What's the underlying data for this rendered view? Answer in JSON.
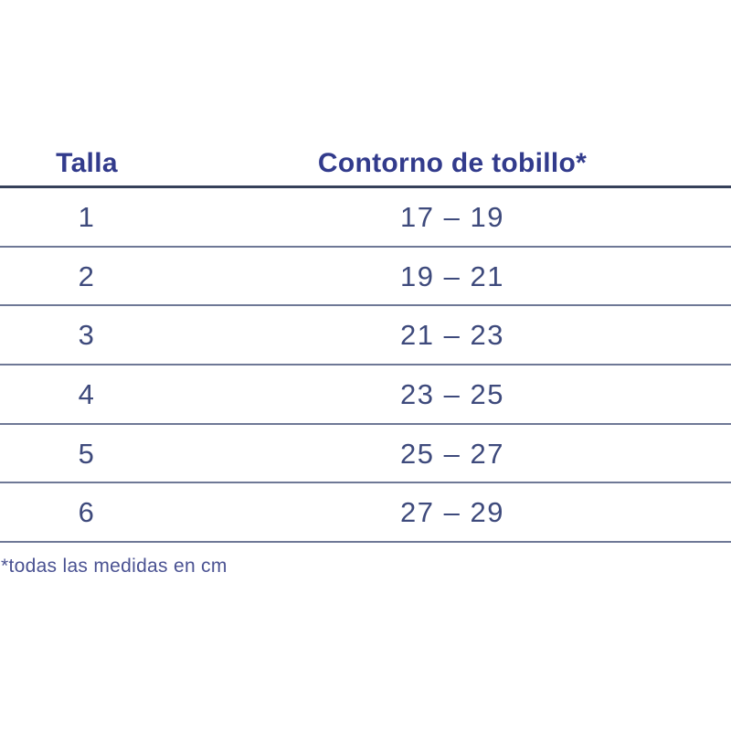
{
  "table": {
    "columns": [
      {
        "label": "Talla"
      },
      {
        "label": "Contorno de tobillo*"
      }
    ],
    "rows": [
      {
        "size": "1",
        "range": "17 – 19"
      },
      {
        "size": "2",
        "range": "19 – 21"
      },
      {
        "size": "3",
        "range": "21 – 23"
      },
      {
        "size": "4",
        "range": "23 – 25"
      },
      {
        "size": "5",
        "range": "25 – 27"
      },
      {
        "size": "6",
        "range": "27 – 29"
      }
    ]
  },
  "footnote": "*todas las medidas en cm",
  "colors": {
    "header_text": "#323B8C",
    "cell_text": "#3E4A7C",
    "footnote_text": "#4A5292",
    "header_rule": "#36415A",
    "row_rule": "#6E7896",
    "background": "#FFFFFF"
  }
}
